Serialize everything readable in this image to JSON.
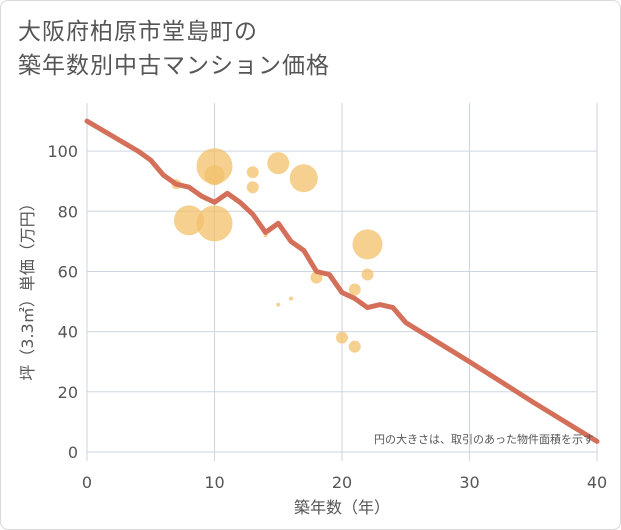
{
  "title_lines": [
    "大阪府柏原市堂島町の",
    "築年数別中古マンション価格"
  ],
  "chart_data": {
    "type": "scatter",
    "title": "大阪府柏原市堂島町の築年数別中古マンション価格",
    "xlabel": "築年数（年）",
    "ylabel": "坪（3.3㎡）単価（万円）",
    "xlim": [
      0,
      40
    ],
    "ylim": [
      -3,
      116
    ],
    "xticks": [
      0,
      10,
      20,
      30,
      40
    ],
    "yticks": [
      0,
      20,
      40,
      60,
      80,
      100
    ],
    "grid": true,
    "note": "円の大きさは、取引のあった物件面積を示す",
    "colors": {
      "bubble": "#f2c06a",
      "line": "#d4705a",
      "grid": "#cdd6e0"
    },
    "bubbles": [
      {
        "x": 7,
        "y": 89,
        "size": 5
      },
      {
        "x": 8,
        "y": 77,
        "size": 15
      },
      {
        "x": 10,
        "y": 95,
        "size": 18
      },
      {
        "x": 10,
        "y": 92,
        "size": 10
      },
      {
        "x": 10,
        "y": 76,
        "size": 18
      },
      {
        "x": 13,
        "y": 88,
        "size": 6
      },
      {
        "x": 13,
        "y": 93,
        "size": 6
      },
      {
        "x": 14,
        "y": 72,
        "size": 2
      },
      {
        "x": 15,
        "y": 96,
        "size": 11
      },
      {
        "x": 15,
        "y": 49,
        "size": 2
      },
      {
        "x": 16,
        "y": 51,
        "size": 2
      },
      {
        "x": 17,
        "y": 91,
        "size": 14
      },
      {
        "x": 18,
        "y": 58,
        "size": 6
      },
      {
        "x": 20,
        "y": 38,
        "size": 6
      },
      {
        "x": 21,
        "y": 54,
        "size": 6
      },
      {
        "x": 21,
        "y": 35,
        "size": 6
      },
      {
        "x": 22,
        "y": 69,
        "size": 15
      },
      {
        "x": 22,
        "y": 59,
        "size": 6
      }
    ],
    "trend": {
      "x": [
        0,
        2,
        4,
        5,
        6,
        7,
        8,
        9,
        10,
        11,
        12,
        13,
        14,
        15,
        16,
        17,
        18,
        19,
        20,
        21,
        22,
        23,
        24,
        25,
        30,
        35,
        40
      ],
      "y": [
        110,
        105,
        100,
        97,
        92,
        89,
        88,
        85,
        83,
        86,
        83,
        79,
        73,
        76,
        70,
        67,
        60,
        59,
        53,
        51,
        48,
        49,
        48,
        43,
        30,
        16.5,
        3.5
      ]
    }
  }
}
